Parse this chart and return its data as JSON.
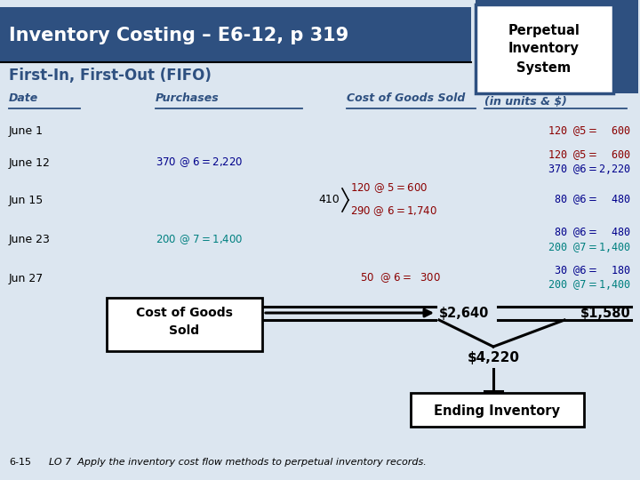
{
  "title": "Inventory Costing – E6-12, p 319",
  "subtitle": "First-In, First-Out (FIFO)",
  "perpetual_box": "Perpetual\nInventory\nSystem",
  "bg_color": "#dce6f0",
  "header_bg": "#2E5080",
  "header_text_color": "#FFFFFF",
  "col_header_color": "#2E5080",
  "purchase_color": "#00008B",
  "cogs_color_red": "#8B0000",
  "balance_color_red": "#8B0000",
  "balance_color_blue": "#00008B",
  "balance_color_teal": "#008080",
  "cogs_total": "$2,640",
  "balance_total": "$1,580",
  "grand_total": "$4,220",
  "ending_inv_label": "Ending Inventory",
  "cogs_box_label": "Cost of Goods\nSold",
  "footer": "6-15",
  "footer_note": "LO 7  Apply the inventory cost flow methods to perpetual inventory records."
}
